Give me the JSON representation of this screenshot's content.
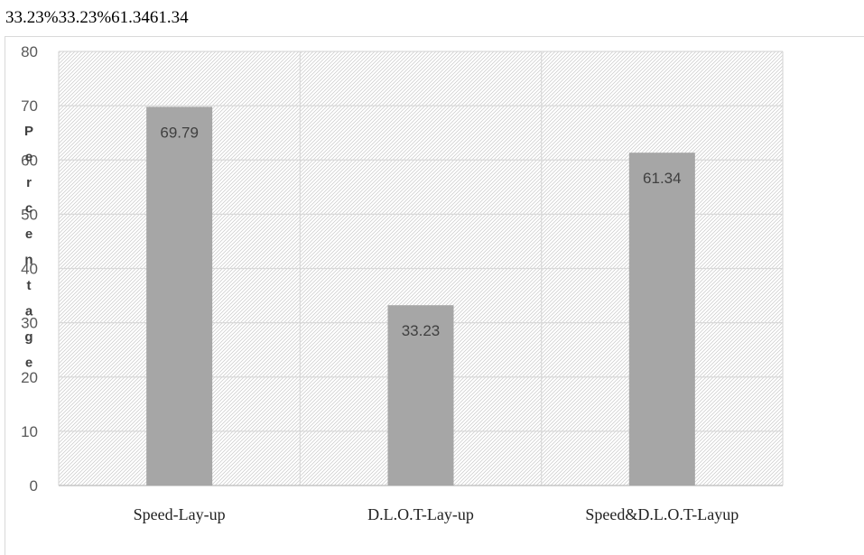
{
  "header_text": "33.23%33.23%61.3461.34",
  "chart_data": {
    "type": "bar",
    "categories": [
      "Speed-Lay-up",
      "D.L.O.T-Lay-up",
      "Speed&D.L.O.T-Layup"
    ],
    "values": [
      69.79,
      33.23,
      61.34
    ],
    "data_labels": [
      "69.79",
      "33.23",
      "61.34"
    ],
    "ylabel": "Percentage",
    "ylim": [
      0,
      80
    ],
    "yticks": [
      0,
      10,
      20,
      30,
      40,
      50,
      60,
      70,
      80
    ],
    "grid": true,
    "bar_color": "#a6a6a6",
    "grid_color": "#d9d9d9",
    "plot_pattern": "diagonal-hatch"
  }
}
